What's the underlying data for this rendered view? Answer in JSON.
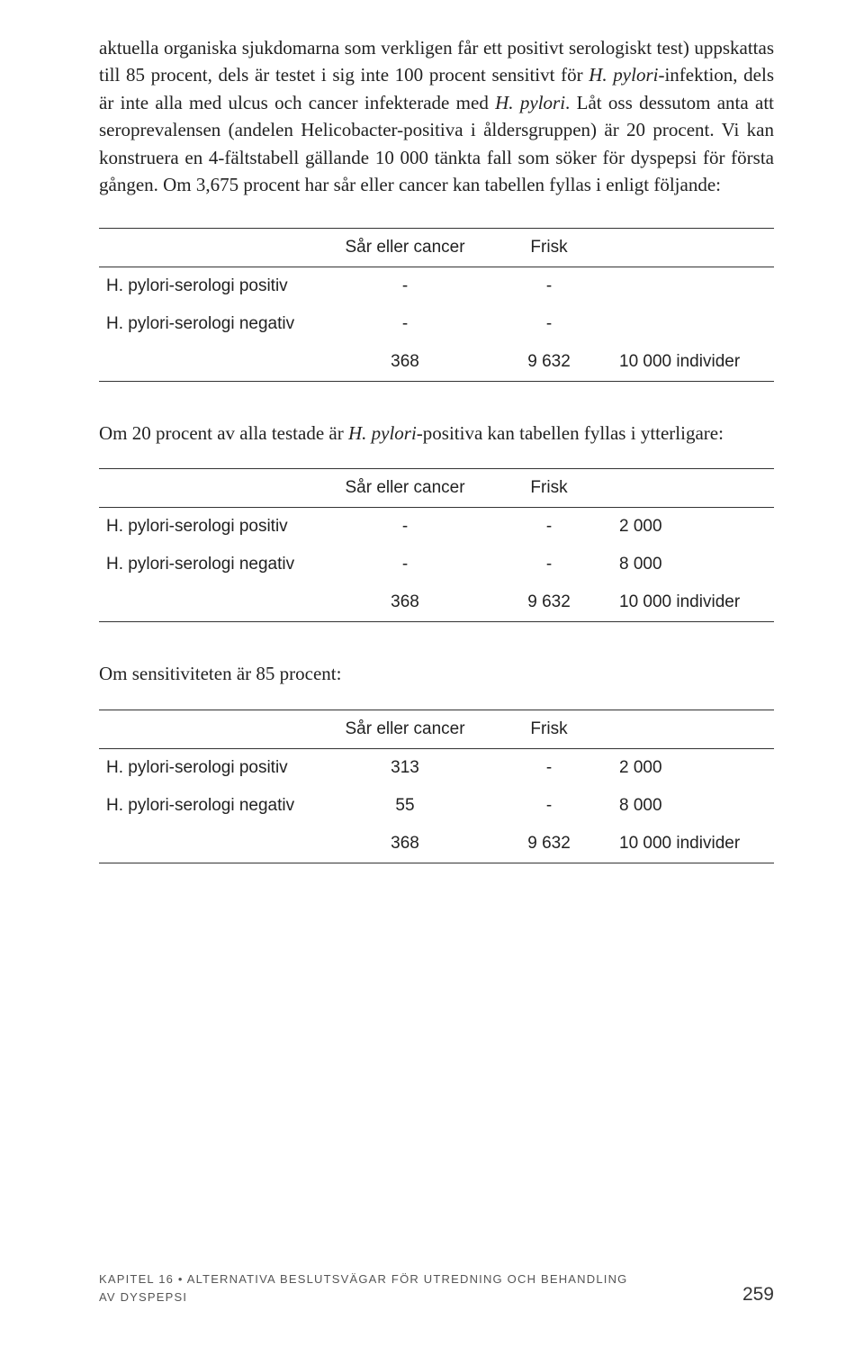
{
  "paragraph": {
    "t1": "aktuella organiska sjukdomarna som verkligen får ett positivt serologiskt test) uppskattas till 85 procent, dels är testet i sig inte 100 procent sensitivt för ",
    "t2": "H. pylori",
    "t3": "-infektion, dels är inte alla med ulcus och cancer infekterade med ",
    "t4": "H. pylori",
    "t5": ". Låt oss dessutom anta att seroprevalensen (andelen Helicobacter-positiva i åldersgruppen) är 20 procent. Vi kan konstruera en 4-fältstabell gällande 10 000 tänkta fall som söker för dyspepsi för första gången. Om 3,675 procent har sår eller cancer kan tabellen fyllas i enligt följande:"
  },
  "tableHeaders": {
    "col2": "Sår eller cancer",
    "col3": "Frisk"
  },
  "rowLabels": {
    "positiv": "H. pylori-serologi positiv",
    "negativ": "H. pylori-serologi negativ"
  },
  "table1": {
    "r1c2": "-",
    "r1c3": "-",
    "r1c4": "",
    "r2c2": "-",
    "r2c3": "-",
    "r2c4": "",
    "r3c2": "368",
    "r3c3": "9 632",
    "r3c4": "10 000 individer"
  },
  "intro2": {
    "t1": "Om 20 procent av alla testade är ",
    "t2": "H. pylori",
    "t3": "-positiva kan tabellen fyllas i ytterligare:"
  },
  "table2": {
    "r1c2": "-",
    "r1c3": "-",
    "r1c4": "2 000",
    "r2c2": "-",
    "r2c3": "-",
    "r2c4": "8 000",
    "r3c2": "368",
    "r3c3": "9 632",
    "r3c4": "10 000 individer"
  },
  "intro3": "Om sensitiviteten är 85 procent:",
  "table3": {
    "r1c2": "313",
    "r1c3": "-",
    "r1c4": "2 000",
    "r2c2": "55",
    "r2c3": "-",
    "r2c4": "8 000",
    "r3c2": "368",
    "r3c3": "9 632",
    "r3c4": "10 000 individer"
  },
  "footer": {
    "line1": "KAPITEL 16 • ALTERNATIVA BESLUTSVÄGAR FÖR UTREDNING OCH BEHANDLING",
    "line2": "AV DYSPEPSI",
    "page": "259"
  },
  "styling": {
    "body_font_serif": "Georgia",
    "table_font_sans": "Arial",
    "text_color": "#222222",
    "divider_color": "#333333",
    "footer_color": "#555555",
    "body_fontsize": 21,
    "table_fontsize": 19,
    "footer_left_fontsize": 13,
    "footer_right_fontsize": 21,
    "background": "#ffffff"
  }
}
